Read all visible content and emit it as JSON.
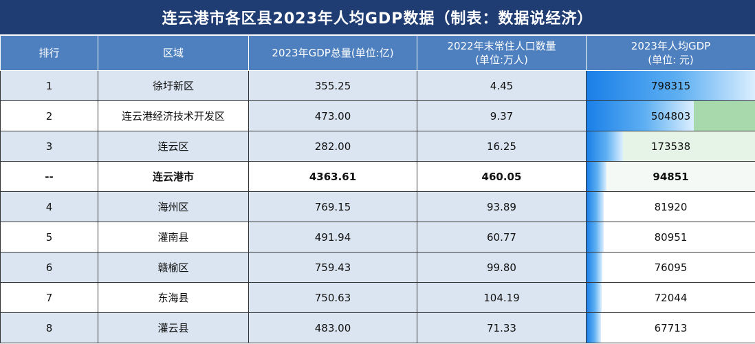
{
  "title": "连云港市各区县2023年人均GDP数据（制表：数据说经济）",
  "headers": {
    "rank": "排行",
    "region": "区域",
    "gdp": "2023年GDP总量(单位:亿)",
    "pop_line1": "2022年末常住人口数量",
    "pop_line2": "(单位:万人)",
    "pcgdp_line1": "2023年人均GDP",
    "pcgdp_line2": "(单位: 元)"
  },
  "rows": [
    {
      "rank": "1",
      "region": "徐圩新区",
      "gdp": "355.25",
      "pop": "4.45",
      "pcgdp": "798315",
      "fraction": 1.0,
      "bg": "#ffffff"
    },
    {
      "rank": "2",
      "region": "连云港经济技术开发区",
      "gdp": "473.00",
      "pop": "9.37",
      "pcgdp": "504803",
      "fraction": 0.6323,
      "bg": "#a7d9ad"
    },
    {
      "rank": "3",
      "region": "连云区",
      "gdp": "282.00",
      "pop": "16.25",
      "pcgdp": "173538",
      "fraction": 0.2174,
      "bg": "#e6f4e8"
    },
    {
      "rank": "--",
      "region": "连云港市",
      "gdp": "4363.61",
      "pop": "460.05",
      "pcgdp": "94851",
      "fraction": 0.1188,
      "bg": "#f4f9f6",
      "total": true
    },
    {
      "rank": "4",
      "region": "海州区",
      "gdp": "769.15",
      "pop": "93.89",
      "pcgdp": "81920",
      "fraction": 0.1026,
      "bg": "#ffffff"
    },
    {
      "rank": "5",
      "region": "灌南县",
      "gdp": "491.94",
      "pop": "60.77",
      "pcgdp": "80951",
      "fraction": 0.1014,
      "bg": "#ffffff"
    },
    {
      "rank": "6",
      "region": "赣榆区",
      "gdp": "759.43",
      "pop": "99.80",
      "pcgdp": "76095",
      "fraction": 0.0953,
      "bg": "#ffffff"
    },
    {
      "rank": "7",
      "region": "东海县",
      "gdp": "750.63",
      "pop": "104.19",
      "pcgdp": "72044",
      "fraction": 0.0902,
      "bg": "#ffffff"
    },
    {
      "rank": "8",
      "region": "灌云县",
      "gdp": "483.00",
      "pop": "71.33",
      "pcgdp": "67713",
      "fraction": 0.0848,
      "bg": "#ffffff"
    }
  ]
}
